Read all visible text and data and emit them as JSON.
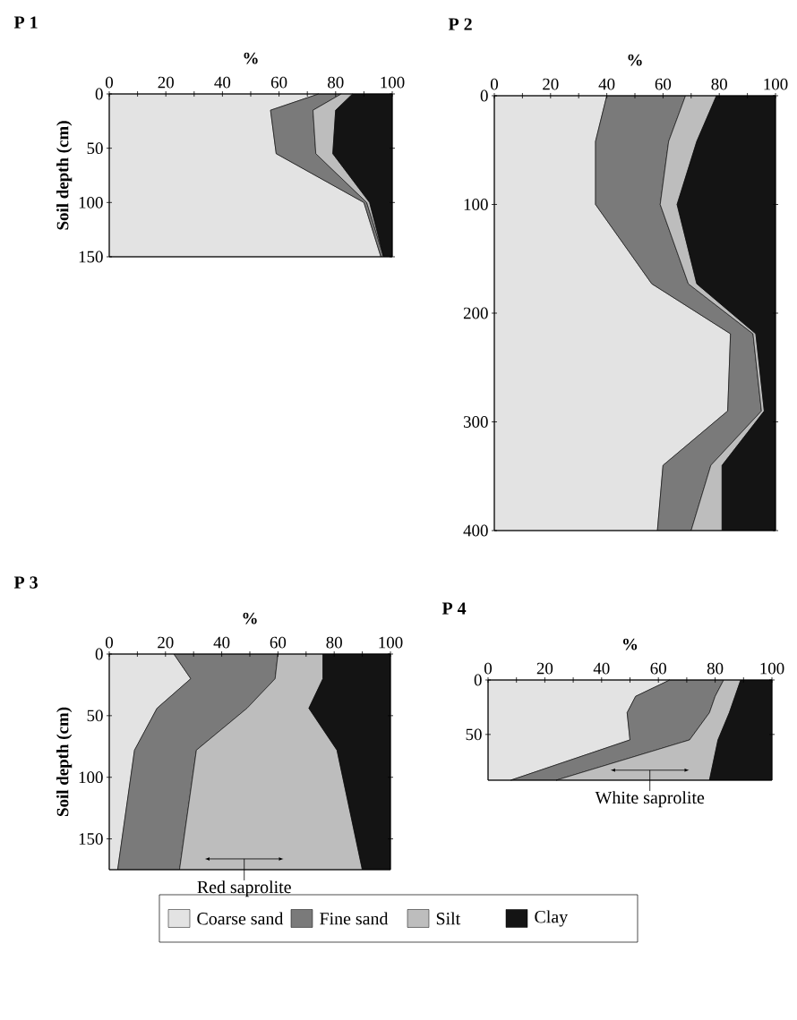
{
  "chart_data": [
    {
      "type": "area",
      "stacked": true,
      "orientation": "horizontal",
      "title": "P 1",
      "xlabel": "%",
      "ylabel": "Soil depth (cm)",
      "legend": "bottom",
      "x": [
        0,
        15,
        55,
        100,
        150
      ],
      "xlim": [
        0,
        100
      ],
      "ylim": [
        150,
        0
      ],
      "xticks": [
        0,
        {
          "value": 10,
          "label": null
        },
        20,
        {
          "value": 30,
          "label": null
        },
        40,
        {
          "value": 50,
          "label": null
        },
        60,
        {
          "value": 70,
          "label": null
        },
        80,
        {
          "value": 90,
          "label": null
        },
        100
      ],
      "yticks": [
        0,
        50,
        100,
        150
      ],
      "series": [
        {
          "name": "Coarse sand",
          "color": "#e3e3e3",
          "values": [
            74,
            57,
            59,
            90,
            96
          ]
        },
        {
          "name": "Fine sand",
          "color": "#7a7a7a",
          "values": [
            8,
            15,
            14,
            1,
            1
          ]
        },
        {
          "name": "Silt",
          "color": "#bdbdbd",
          "values": [
            4,
            8,
            6,
            1,
            0
          ]
        },
        {
          "name": "Clay",
          "color": "#141414",
          "values": [
            14,
            20,
            21,
            8,
            3
          ]
        }
      ]
    },
    {
      "type": "area",
      "stacked": true,
      "orientation": "horizontal",
      "title": "P 2",
      "xlabel": "%",
      "x": [
        0,
        42,
        100,
        173,
        219,
        290,
        340,
        400
      ],
      "xlim": [
        0,
        100
      ],
      "ylim": [
        400,
        0
      ],
      "xticks": [
        0,
        {
          "value": 10,
          "label": null
        },
        20,
        {
          "value": 30,
          "label": null
        },
        40,
        {
          "value": 50,
          "label": null
        },
        60,
        {
          "value": 70,
          "label": null
        },
        80,
        {
          "value": 90,
          "label": null
        },
        100
      ],
      "yticks": [
        0,
        100,
        200,
        300,
        400
      ],
      "series": [
        {
          "color": "#e3e3e3",
          "values": [
            40,
            36,
            36,
            56,
            84,
            83,
            60,
            58
          ]
        },
        {
          "color": "#7a7a7a",
          "values": [
            28,
            26,
            23,
            13,
            8,
            12,
            17,
            12
          ]
        },
        {
          "color": "#bdbdbd",
          "values": [
            11,
            10,
            6,
            3,
            1,
            1,
            4,
            11
          ]
        },
        {
          "color": "#141414",
          "values": [
            21,
            28,
            35,
            28,
            7,
            4,
            19,
            19
          ]
        }
      ]
    },
    {
      "type": "area",
      "stacked": true,
      "orientation": "horizontal",
      "title": "P 3",
      "xlabel": "%",
      "ylabel": "Soil depth (cm)",
      "x": [
        0,
        20,
        44,
        78,
        175
      ],
      "xlim": [
        0,
        100
      ],
      "ylim": [
        175,
        0
      ],
      "xticks": [
        0,
        {
          "value": 10,
          "label": null
        },
        20,
        {
          "value": 30,
          "label": null
        },
        40,
        {
          "value": 50,
          "label": null
        },
        60,
        {
          "value": 70,
          "label": null
        },
        80,
        {
          "value": 90,
          "label": null
        },
        100
      ],
      "yticks": [
        0,
        50,
        100,
        150
      ],
      "annotations": [
        "Red saprolite"
      ],
      "series": [
        {
          "color": "#e3e3e3",
          "values": [
            23,
            29,
            17,
            9,
            3
          ]
        },
        {
          "color": "#7a7a7a",
          "values": [
            37,
            30,
            32,
            22,
            22
          ]
        },
        {
          "color": "#bdbdbd",
          "values": [
            16,
            17,
            22,
            50,
            65
          ]
        },
        {
          "color": "#141414",
          "values": [
            24,
            24,
            29,
            19,
            10
          ]
        }
      ]
    },
    {
      "type": "area",
      "stacked": true,
      "orientation": "horizontal",
      "title": "P 4",
      "xlabel": "%",
      "x": [
        0,
        15,
        30,
        55,
        92
      ],
      "xlim": [
        0,
        100
      ],
      "ylim": [
        92,
        0
      ],
      "xticks": [
        0,
        {
          "value": 10,
          "label": null
        },
        20,
        {
          "value": 30,
          "label": null
        },
        40,
        {
          "value": 50,
          "label": null
        },
        60,
        {
          "value": 70,
          "label": null
        },
        80,
        {
          "value": 90,
          "label": null
        },
        100
      ],
      "yticks": [
        0,
        50
      ],
      "annotations": [
        "White saprolite"
      ],
      "series": [
        {
          "color": "#e3e3e3",
          "values": [
            64,
            52,
            49,
            50,
            8
          ]
        },
        {
          "color": "#7a7a7a",
          "values": [
            19,
            28,
            29,
            21,
            16
          ]
        },
        {
          "color": "#bdbdbd",
          "values": [
            6,
            7,
            7,
            10,
            54
          ]
        },
        {
          "color": "#141414",
          "values": [
            11,
            13,
            15,
            19,
            22
          ]
        }
      ]
    }
  ]
}
